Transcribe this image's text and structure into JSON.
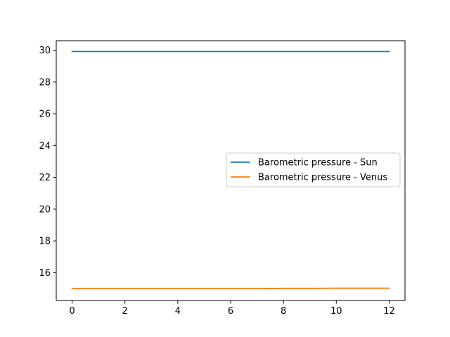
{
  "chart_data": {
    "type": "line",
    "title": "",
    "xlabel": "",
    "ylabel": "",
    "xlim": [
      -0.6,
      12.6
    ],
    "ylim": [
      14.25,
      30.6
    ],
    "xticks": [
      0,
      2,
      4,
      6,
      8,
      10,
      12
    ],
    "yticks": [
      16,
      18,
      20,
      22,
      24,
      26,
      28,
      30
    ],
    "grid": false,
    "legend_position": "center-right",
    "x": [
      0,
      1,
      2,
      3,
      4,
      5,
      6,
      7,
      8,
      9,
      10,
      11,
      12
    ],
    "series": [
      {
        "name": "Barometric pressure - Sun",
        "color": "#1f77b4",
        "values": [
          29.92,
          29.92,
          29.92,
          29.92,
          29.92,
          29.92,
          29.92,
          29.92,
          29.92,
          29.92,
          29.92,
          29.92,
          29.92
        ]
      },
      {
        "name": "Barometric pressure - Venus",
        "color": "#ff7f0e",
        "values": [
          15.0,
          15.0,
          15.0,
          15.0,
          15.0,
          15.0,
          15.0,
          15.0,
          15.01,
          15.01,
          15.02,
          15.02,
          15.02
        ]
      }
    ]
  }
}
